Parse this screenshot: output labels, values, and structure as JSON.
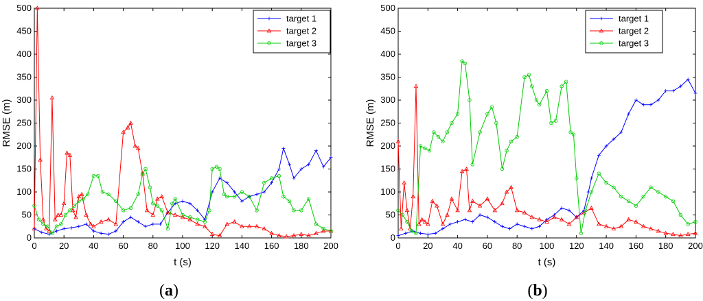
{
  "colors": {
    "target1": "#0000ff",
    "target2": "#ff0000",
    "target3": "#00cc00"
  },
  "chart_data": [
    {
      "type": "line",
      "panel_label": {
        "open": "(",
        "letter": "a",
        "close": ")"
      },
      "xlabel": "t (s)",
      "ylabel": "RMSE (m)",
      "xlim": [
        0,
        200
      ],
      "ylim": [
        0,
        500
      ],
      "xticks": [
        0,
        20,
        40,
        60,
        80,
        100,
        120,
        140,
        160,
        180,
        200
      ],
      "yticks": [
        0,
        50,
        100,
        150,
        200,
        250,
        300,
        350,
        400,
        450,
        500
      ],
      "legend_position": "top-right",
      "series": [
        {
          "name": "target 1",
          "color": "#0000ff",
          "marker": "plus",
          "x": [
            0,
            5,
            10,
            15,
            20,
            25,
            30,
            35,
            40,
            45,
            50,
            55,
            60,
            65,
            70,
            75,
            80,
            85,
            90,
            95,
            100,
            105,
            110,
            115,
            120,
            125,
            130,
            135,
            140,
            145,
            150,
            155,
            160,
            165,
            168,
            172,
            175,
            180,
            185,
            190,
            195,
            200
          ],
          "y": [
            20,
            12,
            8,
            15,
            20,
            22,
            25,
            30,
            15,
            10,
            8,
            15,
            35,
            45,
            35,
            25,
            30,
            30,
            55,
            75,
            80,
            75,
            60,
            40,
            100,
            130,
            120,
            100,
            80,
            90,
            95,
            100,
            120,
            150,
            195,
            160,
            130,
            150,
            160,
            190,
            155,
            175
          ]
        },
        {
          "name": "target 2",
          "color": "#ff0000",
          "marker": "triangle",
          "x": [
            0,
            2,
            4,
            6,
            8,
            10,
            12,
            14,
            16,
            18,
            20,
            22,
            24,
            26,
            28,
            30,
            32,
            35,
            38,
            40,
            45,
            50,
            55,
            60,
            63,
            65,
            68,
            70,
            73,
            76,
            80,
            83,
            86,
            90,
            95,
            100,
            105,
            110,
            115,
            120,
            125,
            130,
            135,
            140,
            145,
            150,
            155,
            160,
            165,
            170,
            175,
            180,
            185,
            190,
            195,
            200
          ],
          "y": [
            20,
            500,
            170,
            40,
            20,
            15,
            305,
            40,
            50,
            50,
            75,
            185,
            180,
            60,
            45,
            90,
            95,
            50,
            30,
            25,
            35,
            40,
            30,
            230,
            240,
            250,
            200,
            195,
            140,
            60,
            50,
            85,
            90,
            55,
            50,
            45,
            40,
            30,
            25,
            8,
            5,
            30,
            35,
            25,
            25,
            25,
            20,
            10,
            5,
            3,
            5,
            8,
            5,
            10,
            15,
            15
          ]
        },
        {
          "name": "target 3",
          "color": "#00cc00",
          "marker": "circle",
          "x": [
            0,
            3,
            6,
            9,
            12,
            15,
            18,
            21,
            24,
            27,
            30,
            33,
            36,
            40,
            43,
            46,
            50,
            55,
            60,
            65,
            70,
            73,
            75,
            78,
            80,
            83,
            86,
            90,
            93,
            95,
            100,
            105,
            110,
            115,
            118,
            120,
            123,
            125,
            128,
            130,
            135,
            140,
            145,
            150,
            155,
            160,
            165,
            168,
            172,
            175,
            180,
            185,
            190,
            195,
            200
          ],
          "y": [
            70,
            40,
            30,
            25,
            10,
            25,
            30,
            50,
            60,
            70,
            80,
            85,
            95,
            135,
            135,
            100,
            95,
            80,
            60,
            65,
            95,
            140,
            150,
            110,
            75,
            70,
            60,
            20,
            75,
            85,
            50,
            45,
            40,
            35,
            60,
            150,
            155,
            150,
            95,
            90,
            90,
            100,
            90,
            60,
            120,
            130,
            135,
            90,
            80,
            60,
            60,
            85,
            30,
            20,
            15
          ]
        }
      ]
    },
    {
      "type": "line",
      "panel_label": {
        "open": "(",
        "letter": "b",
        "close": ")"
      },
      "xlabel": "t (s)",
      "ylabel": "RMSE (m)",
      "xlim": [
        0,
        200
      ],
      "ylim": [
        0,
        500
      ],
      "xticks": [
        0,
        20,
        40,
        60,
        80,
        100,
        120,
        140,
        160,
        180,
        200
      ],
      "yticks": [
        0,
        50,
        100,
        150,
        200,
        250,
        300,
        350,
        400,
        450,
        500
      ],
      "legend_position": "top-right",
      "series": [
        {
          "name": "target 1",
          "color": "#0000ff",
          "marker": "plus",
          "x": [
            0,
            5,
            10,
            15,
            20,
            25,
            30,
            35,
            40,
            45,
            50,
            55,
            60,
            65,
            70,
            75,
            80,
            85,
            90,
            95,
            100,
            105,
            110,
            115,
            120,
            125,
            128,
            130,
            135,
            140,
            145,
            150,
            155,
            160,
            165,
            170,
            175,
            180,
            185,
            190,
            195,
            200
          ],
          "y": [
            5,
            10,
            15,
            10,
            8,
            10,
            20,
            30,
            35,
            40,
            35,
            50,
            45,
            35,
            25,
            20,
            30,
            25,
            20,
            25,
            40,
            50,
            65,
            60,
            45,
            60,
            100,
            130,
            180,
            200,
            215,
            230,
            270,
            300,
            290,
            290,
            300,
            320,
            320,
            330,
            345,
            315
          ]
        },
        {
          "name": "target 2",
          "color": "#ff0000",
          "marker": "triangle",
          "x": [
            0,
            2,
            4,
            6,
            8,
            10,
            12,
            14,
            16,
            18,
            20,
            23,
            26,
            30,
            33,
            36,
            40,
            43,
            46,
            48,
            50,
            55,
            60,
            65,
            70,
            73,
            76,
            80,
            85,
            90,
            95,
            100,
            105,
            110,
            115,
            120,
            125,
            130,
            135,
            140,
            145,
            150,
            155,
            160,
            165,
            170,
            175,
            180,
            185,
            190,
            195,
            200
          ],
          "y": [
            210,
            20,
            120,
            60,
            20,
            90,
            330,
            30,
            40,
            35,
            30,
            80,
            70,
            30,
            50,
            85,
            60,
            145,
            150,
            60,
            80,
            70,
            85,
            60,
            75,
            100,
            110,
            60,
            55,
            45,
            40,
            35,
            45,
            40,
            30,
            45,
            55,
            65,
            30,
            25,
            20,
            25,
            40,
            35,
            25,
            20,
            15,
            10,
            8,
            5,
            8,
            10
          ]
        },
        {
          "name": "target 3",
          "color": "#00cc00",
          "marker": "circle",
          "x": [
            0,
            3,
            6,
            9,
            12,
            15,
            18,
            21,
            24,
            27,
            30,
            33,
            36,
            40,
            43,
            45,
            48,
            50,
            55,
            60,
            63,
            66,
            70,
            73,
            76,
            80,
            85,
            88,
            90,
            93,
            95,
            100,
            103,
            106,
            110,
            113,
            116,
            118,
            120,
            123,
            126,
            130,
            135,
            140,
            145,
            150,
            155,
            160,
            165,
            170,
            175,
            180,
            185,
            190,
            195,
            200
          ],
          "y": [
            60,
            50,
            35,
            15,
            10,
            200,
            195,
            190,
            230,
            220,
            210,
            230,
            250,
            270,
            385,
            380,
            300,
            160,
            230,
            270,
            285,
            250,
            150,
            190,
            210,
            220,
            350,
            355,
            330,
            300,
            290,
            320,
            250,
            255,
            330,
            340,
            230,
            225,
            130,
            10,
            60,
            100,
            140,
            120,
            110,
            90,
            80,
            70,
            90,
            110,
            100,
            90,
            80,
            50,
            30,
            35
          ]
        }
      ]
    }
  ]
}
